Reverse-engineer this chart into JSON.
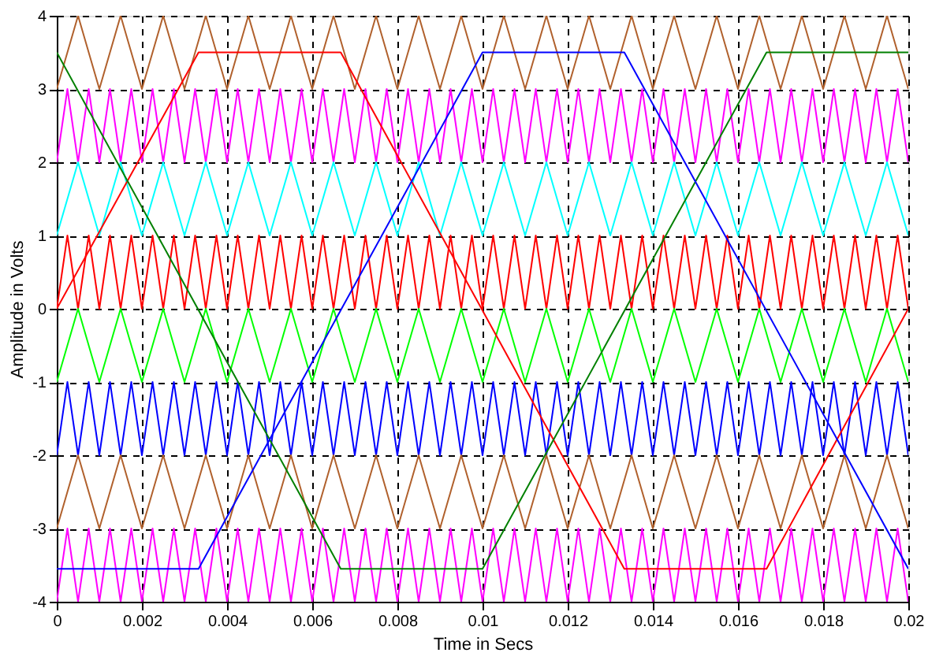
{
  "chart_data": {
    "type": "line",
    "xlabel": "Time in Secs",
    "ylabel": "Amplitude in Volts",
    "xlim": [
      0,
      0.02
    ],
    "ylim": [
      -4,
      4
    ],
    "xticks": [
      {
        "value": 0,
        "label": "0"
      },
      0.002,
      0.004,
      0.006,
      0.008,
      {
        "value": 0.01,
        "label": "0.01"
      },
      0.012,
      0.014,
      0.016,
      0.018,
      {
        "value": 0.02,
        "label": "0.02"
      }
    ],
    "yticks": [
      -4,
      -3,
      -2,
      -1,
      0,
      1,
      2,
      3,
      4
    ],
    "grid": true,
    "x": [
      0,
      0.00025,
      0.0005,
      0.00075,
      0.001,
      0.00125,
      0.0015,
      0.00175,
      0.002,
      0.00225,
      0.0025,
      0.00275,
      0.003,
      0.00325,
      0.0035,
      0.00375,
      0.004,
      0.00425,
      0.0045,
      0.00475,
      0.005,
      0.00525,
      0.0055,
      0.00575,
      0.006,
      0.00625,
      0.0065,
      0.00675,
      0.007,
      0.00725,
      0.0075,
      0.00775,
      0.008,
      0.00825,
      0.0085,
      0.00875,
      0.009,
      0.00925,
      0.0095,
      0.00975,
      0.01,
      0.01025,
      0.0105,
      0.01075,
      0.011,
      0.01125,
      0.0115,
      0.01175,
      0.012,
      0.01225,
      0.0125,
      0.01275,
      0.013,
      0.01325,
      0.0135,
      0.01375,
      0.014,
      0.01425,
      0.0145,
      0.01475,
      0.015,
      0.01525,
      0.0155,
      0.01575,
      0.016,
      0.01625,
      0.0165,
      0.01675,
      0.017,
      0.01725,
      0.0175,
      0.01775,
      0.018,
      0.01825,
      0.0185,
      0.01875,
      0.019,
      0.01925,
      0.0195,
      0.01975,
      0.02
    ],
    "series": [
      {
        "color": "#b0602c",
        "values": [
          3,
          3.5,
          4,
          3.5,
          3,
          3.5,
          4,
          3.5,
          3,
          3.5,
          4,
          3.5,
          3,
          3.5,
          4,
          3.5,
          3,
          3.5,
          4,
          3.5,
          3,
          3.5,
          4,
          3.5,
          3,
          3.5,
          4,
          3.5,
          3,
          3.5,
          4,
          3.5,
          3,
          3.5,
          4,
          3.5,
          3,
          3.5,
          4,
          3.5,
          3,
          3.5,
          4,
          3.5,
          3,
          3.5,
          4,
          3.5,
          3,
          3.5,
          4,
          3.5,
          3,
          3.5,
          4,
          3.5,
          3,
          3.5,
          4,
          3.5,
          3,
          3.5,
          4,
          3.5,
          3,
          3.5,
          4,
          3.5,
          3,
          3.5,
          4,
          3.5,
          3,
          3.5,
          4,
          3.5,
          3,
          3.5,
          4,
          3.5,
          3
        ]
      },
      {
        "color": "#ff00ff",
        "values": [
          2,
          3,
          2,
          3,
          2,
          3,
          2,
          3,
          2,
          3,
          2,
          3,
          2,
          3,
          2,
          3,
          2,
          3,
          2,
          3,
          2,
          3,
          2,
          3,
          2,
          3,
          2,
          3,
          2,
          3,
          2,
          3,
          2,
          3,
          2,
          3,
          2,
          3,
          2,
          3,
          2,
          3,
          2,
          3,
          2,
          3,
          2,
          3,
          2,
          3,
          2,
          3,
          2,
          3,
          2,
          3,
          2,
          3,
          2,
          3,
          2,
          3,
          2,
          3,
          2,
          3,
          2,
          3,
          2,
          3,
          2,
          3,
          2,
          3,
          2,
          3,
          2,
          3,
          2,
          3,
          2
        ]
      },
      {
        "color": "#00ffff",
        "values": [
          1,
          1.5,
          2,
          1.5,
          1,
          1.5,
          2,
          1.5,
          1,
          1.5,
          2,
          1.5,
          1,
          1.5,
          2,
          1.5,
          1,
          1.5,
          2,
          1.5,
          1,
          1.5,
          2,
          1.5,
          1,
          1.5,
          2,
          1.5,
          1,
          1.5,
          2,
          1.5,
          1,
          1.5,
          2,
          1.5,
          1,
          1.5,
          2,
          1.5,
          1,
          1.5,
          2,
          1.5,
          1,
          1.5,
          2,
          1.5,
          1,
          1.5,
          2,
          1.5,
          1,
          1.5,
          2,
          1.5,
          1,
          1.5,
          2,
          1.5,
          1,
          1.5,
          2,
          1.5,
          1,
          1.5,
          2,
          1.5,
          1,
          1.5,
          2,
          1.5,
          1,
          1.5,
          2,
          1.5,
          1,
          1.5,
          2,
          1.5,
          1
        ]
      },
      {
        "color": "#ff0000",
        "values": [
          0,
          1,
          0,
          1,
          0,
          1,
          0,
          1,
          0,
          1,
          0,
          1,
          0,
          1,
          0,
          1,
          0,
          1,
          0,
          1,
          0,
          1,
          0,
          1,
          0,
          1,
          0,
          1,
          0,
          1,
          0,
          1,
          0,
          1,
          0,
          1,
          0,
          1,
          0,
          1,
          0,
          1,
          0,
          1,
          0,
          1,
          0,
          1,
          0,
          1,
          0,
          1,
          0,
          1,
          0,
          1,
          0,
          1,
          0,
          1,
          0,
          1,
          0,
          1,
          0,
          1,
          0,
          1,
          0,
          1,
          0,
          1,
          0,
          1,
          0,
          1,
          0,
          1,
          0,
          1,
          0
        ]
      },
      {
        "color": "#00ff00",
        "values": [
          -1,
          -0.5,
          0,
          -0.5,
          -1,
          -0.5,
          0,
          -0.5,
          -1,
          -0.5,
          0,
          -0.5,
          -1,
          -0.5,
          0,
          -0.5,
          -1,
          -0.5,
          0,
          -0.5,
          -1,
          -0.5,
          0,
          -0.5,
          -1,
          -0.5,
          0,
          -0.5,
          -1,
          -0.5,
          0,
          -0.5,
          -1,
          -0.5,
          0,
          -0.5,
          -1,
          -0.5,
          0,
          -0.5,
          -1,
          -0.5,
          0,
          -0.5,
          -1,
          -0.5,
          0,
          -0.5,
          -1,
          -0.5,
          0,
          -0.5,
          -1,
          -0.5,
          0,
          -0.5,
          -1,
          -0.5,
          0,
          -0.5,
          -1,
          -0.5,
          0,
          -0.5,
          -1,
          -0.5,
          0,
          -0.5,
          -1,
          -0.5,
          0,
          -0.5,
          -1,
          -0.5,
          0,
          -0.5,
          -1,
          -0.5,
          0,
          -0.5,
          -1
        ]
      },
      {
        "color": "#0000ff",
        "values": [
          -2,
          -1,
          -2,
          -1,
          -2,
          -1,
          -2,
          -1,
          -2,
          -1,
          -2,
          -1,
          -2,
          -1,
          -2,
          -1,
          -2,
          -1,
          -2,
          -1,
          -2,
          -1,
          -2,
          -1,
          -2,
          -1,
          -2,
          -1,
          -2,
          -1,
          -2,
          -1,
          -2,
          -1,
          -2,
          -1,
          -2,
          -1,
          -2,
          -1,
          -2,
          -1,
          -2,
          -1,
          -2,
          -1,
          -2,
          -1,
          -2,
          -1,
          -2,
          -1,
          -2,
          -1,
          -2,
          -1,
          -2,
          -1,
          -2,
          -1,
          -2,
          -1,
          -2,
          -1,
          -2,
          -1,
          -2,
          -1,
          -2,
          -1,
          -2,
          -1,
          -2,
          -1,
          -2,
          -1,
          -2,
          -1,
          -2,
          -1,
          -2
        ]
      },
      {
        "color": "#b0602c",
        "values": [
          -3,
          -2.5,
          -2,
          -2.5,
          -3,
          -2.5,
          -2,
          -2.5,
          -3,
          -2.5,
          -2,
          -2.5,
          -3,
          -2.5,
          -2,
          -2.5,
          -3,
          -2.5,
          -2,
          -2.5,
          -3,
          -2.5,
          -2,
          -2.5,
          -3,
          -2.5,
          -2,
          -2.5,
          -3,
          -2.5,
          -2,
          -2.5,
          -3,
          -2.5,
          -2,
          -2.5,
          -3,
          -2.5,
          -2,
          -2.5,
          -3,
          -2.5,
          -2,
          -2.5,
          -3,
          -2.5,
          -2,
          -2.5,
          -3,
          -2.5,
          -2,
          -2.5,
          -3,
          -2.5,
          -2,
          -2.5,
          -3,
          -2.5,
          -2,
          -2.5,
          -3,
          -2.5,
          -2,
          -2.5,
          -3,
          -2.5,
          -2,
          -2.5,
          -3,
          -2.5,
          -2,
          -2.5,
          -3,
          -2.5,
          -2,
          -2.5,
          -3,
          -2.5,
          -2,
          -2.5,
          -3
        ]
      },
      {
        "color": "#ff00ff",
        "values": [
          -4,
          -3,
          -4,
          -3,
          -4,
          -3,
          -4,
          -3,
          -4,
          -3,
          -4,
          -3,
          -4,
          -3,
          -4,
          -3,
          -4,
          -3,
          -4,
          -3,
          -4,
          -3,
          -4,
          -3,
          -4,
          -3,
          -4,
          -3,
          -4,
          -3,
          -4,
          -3,
          -4,
          -3,
          -4,
          -3,
          -4,
          -3,
          -4,
          -3,
          -4,
          -3,
          -4,
          -3,
          -4,
          -3,
          -4,
          -3,
          -4,
          -3,
          -4,
          -3,
          -4,
          -3,
          -4,
          -3,
          -4,
          -3,
          -4,
          -3,
          -4,
          -3,
          -4,
          -3,
          -4,
          -3,
          -4,
          -3,
          -4,
          -3,
          -4,
          -3,
          -4,
          -3,
          -4,
          -3,
          -4,
          -3,
          -4,
          -3,
          -4
        ]
      },
      {
        "color": "#ff0000",
        "x": [
          0,
          0.00333,
          0.00667,
          0.01333,
          0.01667,
          0.02
        ],
        "values": [
          0,
          3.5,
          3.5,
          -3.55,
          -3.55,
          0
        ]
      },
      {
        "color": "#008000",
        "x": [
          0,
          0.00667,
          0.01,
          0.01667,
          0.02
        ],
        "values": [
          3.5,
          -3.55,
          -3.55,
          3.5,
          3.5
        ]
      },
      {
        "color": "#0000ff",
        "x": [
          0,
          0.00333,
          0.01,
          0.01333,
          0.02
        ],
        "values": [
          -3.55,
          -3.55,
          3.5,
          3.5,
          -3.55
        ]
      }
    ]
  }
}
